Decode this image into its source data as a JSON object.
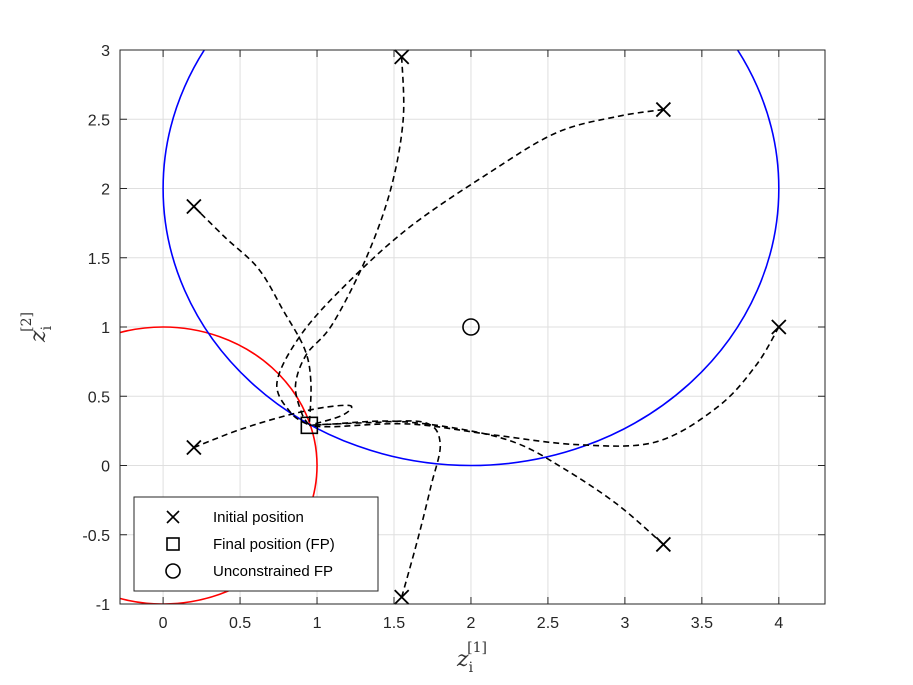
{
  "chart_data": {
    "type": "line",
    "xlabel": "z_i^{[1]}",
    "ylabel": "z_i^{[2]}",
    "xlim": [
      -0.28,
      4.3
    ],
    "ylim": [
      -1,
      3
    ],
    "x_ticks": [
      0,
      0.5,
      1,
      1.5,
      2,
      2.5,
      3,
      3.5,
      4
    ],
    "y_ticks": [
      -1,
      -0.5,
      0,
      0.5,
      1,
      1.5,
      2,
      2.5,
      3
    ],
    "x_tick_labels": [
      "0",
      "0.5",
      "1",
      "1.5",
      "2",
      "2.5",
      "3",
      "3.5",
      "4"
    ],
    "y_tick_labels": [
      "-1",
      "-0.5",
      "0",
      "0.5",
      "1",
      "1.5",
      "2",
      "2.5",
      "3"
    ],
    "grid": true,
    "legend_position": "bottom-left",
    "legend": [
      {
        "label": "Initial position",
        "marker": "x"
      },
      {
        "label": "Final position (FP)",
        "marker": "square"
      },
      {
        "label": "Unconstrained FP",
        "marker": "circle"
      }
    ],
    "constraint_circles": [
      {
        "center": [
          0,
          0
        ],
        "radius": 1,
        "color": "#ff0000"
      },
      {
        "center": [
          2,
          2
        ],
        "radius": 2,
        "color": "#0000ff"
      }
    ],
    "initial_positions": [
      [
        1.55,
        2.95
      ],
      [
        3.25,
        2.57
      ],
      [
        0.2,
        1.87
      ],
      [
        4.0,
        1.0
      ],
      [
        0.2,
        0.13
      ],
      [
        3.25,
        -0.57
      ],
      [
        1.55,
        -0.95
      ]
    ],
    "final_position": [
      0.95,
      0.29
    ],
    "unconstrained_final_position": [
      2.0,
      1.0
    ],
    "trajectories": [
      {
        "points": [
          [
            1.55,
            2.95
          ],
          [
            1.56,
            2.5
          ],
          [
            1.48,
            2.0
          ],
          [
            1.32,
            1.5
          ],
          [
            1.1,
            1.02
          ],
          [
            0.93,
            0.8
          ],
          [
            0.86,
            0.58
          ],
          [
            0.9,
            0.38
          ],
          [
            0.95,
            0.29
          ]
        ]
      },
      {
        "points": [
          [
            3.25,
            2.57
          ],
          [
            2.95,
            2.52
          ],
          [
            2.55,
            2.4
          ],
          [
            2.1,
            2.1
          ],
          [
            1.6,
            1.72
          ],
          [
            1.2,
            1.32
          ],
          [
            0.9,
            0.95
          ],
          [
            0.74,
            0.6
          ],
          [
            0.83,
            0.38
          ],
          [
            0.95,
            0.29
          ]
        ]
      },
      {
        "points": [
          [
            0.2,
            1.87
          ],
          [
            0.4,
            1.65
          ],
          [
            0.62,
            1.42
          ],
          [
            0.78,
            1.12
          ],
          [
            0.92,
            0.84
          ],
          [
            0.96,
            0.6
          ],
          [
            0.95,
            0.29
          ]
        ]
      },
      {
        "points": [
          [
            4.0,
            1.0
          ],
          [
            3.85,
            0.72
          ],
          [
            3.6,
            0.42
          ],
          [
            3.2,
            0.17
          ],
          [
            2.7,
            0.15
          ],
          [
            2.15,
            0.22
          ],
          [
            1.6,
            0.3
          ],
          [
            1.1,
            0.28
          ],
          [
            0.95,
            0.29
          ]
        ]
      },
      {
        "points": [
          [
            0.2,
            0.13
          ],
          [
            0.5,
            0.26
          ],
          [
            0.8,
            0.36
          ],
          [
            1.05,
            0.42
          ],
          [
            1.22,
            0.43
          ],
          [
            1.16,
            0.36
          ],
          [
            0.95,
            0.29
          ]
        ]
      },
      {
        "points": [
          [
            3.25,
            -0.57
          ],
          [
            2.95,
            -0.28
          ],
          [
            2.6,
            -0.02
          ],
          [
            2.3,
            0.16
          ],
          [
            1.95,
            0.26
          ],
          [
            1.5,
            0.32
          ],
          [
            1.1,
            0.3
          ],
          [
            0.95,
            0.29
          ]
        ]
      },
      {
        "points": [
          [
            1.55,
            -0.95
          ],
          [
            1.65,
            -0.55
          ],
          [
            1.74,
            -0.15
          ],
          [
            1.8,
            0.16
          ],
          [
            1.7,
            0.31
          ],
          [
            1.35,
            0.31
          ],
          [
            0.95,
            0.29
          ]
        ]
      }
    ]
  }
}
